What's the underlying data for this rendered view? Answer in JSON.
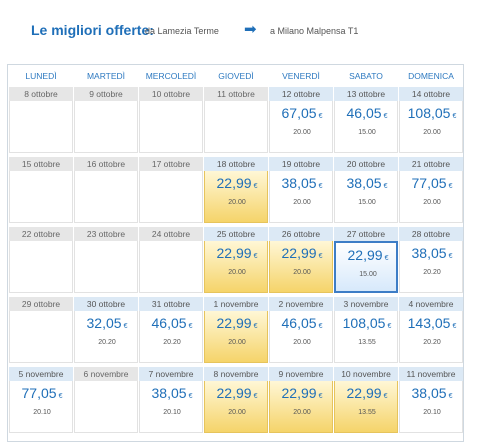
{
  "header": {
    "title": "Le migliori offerte:",
    "from": "da Lamezia Terme",
    "arrow_icon": "right-arrow-icon",
    "to": "a Milano Malpensa T1"
  },
  "weekdays": [
    "LUNEDÌ",
    "MARTEDÌ",
    "MERCOLEDÌ",
    "GIOVEDÌ",
    "VENERDÌ",
    "SABATO",
    "DOMENICA"
  ],
  "currency": "€",
  "weeks": [
    [
      {
        "date": "8 ottobre",
        "price": "",
        "time": "",
        "state": "none"
      },
      {
        "date": "9 ottobre",
        "price": "",
        "time": "",
        "state": "none"
      },
      {
        "date": "10 ottobre",
        "price": "",
        "time": "",
        "state": "none"
      },
      {
        "date": "11 ottobre",
        "price": "",
        "time": "",
        "state": "none"
      },
      {
        "date": "12 ottobre",
        "price": "67,05",
        "time": "20.00",
        "state": "normal"
      },
      {
        "date": "13 ottobre",
        "price": "46,05",
        "time": "15.00",
        "state": "normal"
      },
      {
        "date": "14 ottobre",
        "price": "108,05",
        "time": "20.00",
        "state": "normal"
      }
    ],
    [
      {
        "date": "15 ottobre",
        "price": "",
        "time": "",
        "state": "none"
      },
      {
        "date": "16 ottobre",
        "price": "",
        "time": "",
        "state": "none"
      },
      {
        "date": "17 ottobre",
        "price": "",
        "time": "",
        "state": "none"
      },
      {
        "date": "18 ottobre",
        "price": "22,99",
        "time": "20.00",
        "state": "best"
      },
      {
        "date": "19 ottobre",
        "price": "38,05",
        "time": "20.00",
        "state": "normal"
      },
      {
        "date": "20 ottobre",
        "price": "38,05",
        "time": "15.00",
        "state": "normal"
      },
      {
        "date": "21 ottobre",
        "price": "77,05",
        "time": "20.00",
        "state": "normal"
      }
    ],
    [
      {
        "date": "22 ottobre",
        "price": "",
        "time": "",
        "state": "none"
      },
      {
        "date": "23 ottobre",
        "price": "",
        "time": "",
        "state": "none"
      },
      {
        "date": "24 ottobre",
        "price": "",
        "time": "",
        "state": "none"
      },
      {
        "date": "25 ottobre",
        "price": "22,99",
        "time": "20.00",
        "state": "best"
      },
      {
        "date": "26 ottobre",
        "price": "22,99",
        "time": "20.00",
        "state": "best"
      },
      {
        "date": "27 ottobre",
        "price": "22,99",
        "time": "15.00",
        "state": "selected"
      },
      {
        "date": "28 ottobre",
        "price": "38,05",
        "time": "20.20",
        "state": "normal"
      }
    ],
    [
      {
        "date": "29 ottobre",
        "price": "",
        "time": "",
        "state": "none"
      },
      {
        "date": "30 ottobre",
        "price": "32,05",
        "time": "20.20",
        "state": "normal"
      },
      {
        "date": "31 ottobre",
        "price": "46,05",
        "time": "20.20",
        "state": "normal"
      },
      {
        "date": "1 novembre",
        "price": "22,99",
        "time": "20.00",
        "state": "best"
      },
      {
        "date": "2 novembre",
        "price": "46,05",
        "time": "20.00",
        "state": "normal"
      },
      {
        "date": "3 novembre",
        "price": "108,05",
        "time": "13.55",
        "state": "normal"
      },
      {
        "date": "4 novembre",
        "price": "143,05",
        "time": "20.20",
        "state": "normal"
      }
    ],
    [
      {
        "date": "5 novembre",
        "price": "77,05",
        "time": "20.10",
        "state": "normal"
      },
      {
        "date": "6 novembre",
        "price": "",
        "time": "",
        "state": "none"
      },
      {
        "date": "7 novembre",
        "price": "38,05",
        "time": "20.10",
        "state": "normal"
      },
      {
        "date": "8 novembre",
        "price": "22,99",
        "time": "20.00",
        "state": "best"
      },
      {
        "date": "9 novembre",
        "price": "22,99",
        "time": "20.00",
        "state": "best"
      },
      {
        "date": "10 novembre",
        "price": "22,99",
        "time": "13.55",
        "state": "best"
      },
      {
        "date": "11 novembre",
        "price": "38,05",
        "time": "20.10",
        "state": "normal"
      }
    ]
  ]
}
